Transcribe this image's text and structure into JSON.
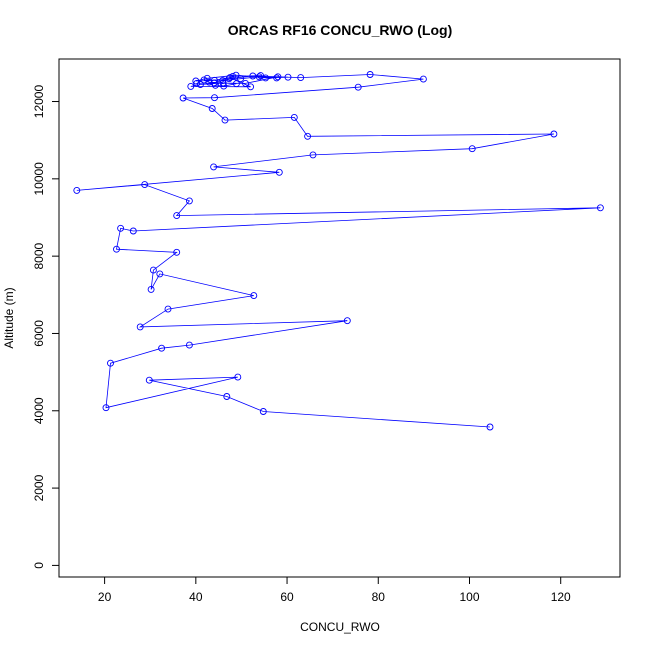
{
  "chart_data": {
    "type": "line",
    "title": "ORCAS RF16 CONCU_RWO (Log)",
    "xlabel": "CONCU_RWO",
    "ylabel": "Altitude (m)",
    "xlim": [
      10,
      133
    ],
    "ylim": [
      -300,
      13100
    ],
    "x_ticks": [
      20,
      40,
      60,
      80,
      100,
      120
    ],
    "y_ticks": [
      0,
      2000,
      4000,
      6000,
      8000,
      10000,
      12000
    ],
    "grid": false,
    "legend": "none",
    "marker": "open-circle",
    "series": [
      {
        "color": "#0000ff",
        "points": [
          [
            104.5,
            3580
          ],
          [
            54.8,
            3980
          ],
          [
            46.8,
            4370
          ],
          [
            29.8,
            4790
          ],
          [
            49.2,
            4870
          ],
          [
            20.3,
            4080
          ],
          [
            21.3,
            5230
          ],
          [
            32.5,
            5620
          ],
          [
            38.6,
            5700
          ],
          [
            73.2,
            6330
          ],
          [
            27.8,
            6170
          ],
          [
            33.9,
            6630
          ],
          [
            52.7,
            6980
          ],
          [
            32.1,
            7540
          ],
          [
            30.2,
            7140
          ],
          [
            30.7,
            7640
          ],
          [
            35.8,
            8100
          ],
          [
            22.6,
            8180
          ],
          [
            23.5,
            8720
          ],
          [
            26.3,
            8650
          ],
          [
            128.7,
            9250
          ],
          [
            35.8,
            9050
          ],
          [
            38.6,
            9430
          ],
          [
            28.8,
            9850
          ],
          [
            13.9,
            9700
          ],
          [
            58.3,
            10170
          ],
          [
            43.9,
            10310
          ],
          [
            65.7,
            10620
          ],
          [
            100.6,
            10780
          ],
          [
            118.5,
            11160
          ],
          [
            64.5,
            11100
          ],
          [
            61.6,
            11590
          ],
          [
            46.4,
            11520
          ],
          [
            43.6,
            11820
          ],
          [
            37.2,
            12090
          ],
          [
            44.1,
            12100
          ],
          [
            75.6,
            12370
          ],
          [
            89.9,
            12580
          ],
          [
            78.2,
            12700
          ],
          [
            63.0,
            12620
          ],
          [
            58.0,
            12640
          ],
          [
            50.9,
            12470
          ],
          [
            46.0,
            12480
          ],
          [
            41.0,
            12440
          ],
          [
            38.9,
            12390
          ],
          [
            52.0,
            12380
          ],
          [
            47.5,
            12620
          ],
          [
            44.1,
            12550
          ],
          [
            40.0,
            12530
          ],
          [
            42.5,
            12600
          ],
          [
            48.8,
            12680
          ],
          [
            55.3,
            12610
          ],
          [
            60.2,
            12630
          ],
          [
            52.5,
            12660
          ],
          [
            47.3,
            12590
          ],
          [
            44.3,
            12420
          ],
          [
            46.1,
            12400
          ],
          [
            48.9,
            12460
          ],
          [
            42.9,
            12500
          ],
          [
            41.8,
            12560
          ],
          [
            45.9,
            12540
          ],
          [
            49.8,
            12590
          ],
          [
            53.9,
            12640
          ],
          [
            57.7,
            12610
          ],
          [
            54.2,
            12670
          ],
          [
            48.1,
            12650
          ],
          [
            44.0,
            12480
          ],
          [
            40.2,
            12470
          ]
        ]
      }
    ]
  }
}
